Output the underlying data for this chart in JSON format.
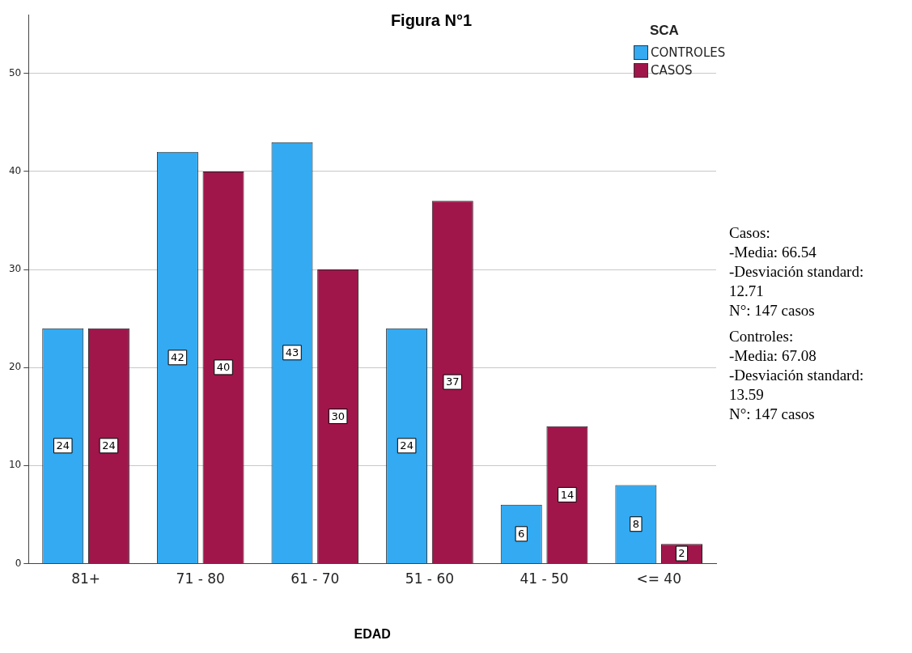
{
  "chart_data": {
    "type": "bar",
    "title": "Figura N°1",
    "xlabel": "EDAD",
    "legend_title": "SCA",
    "categories": [
      "81+",
      "71 - 80",
      "61 - 70",
      "51 - 60",
      "41 - 50",
      "<= 40"
    ],
    "series": [
      {
        "name": "CONTROLES",
        "color": "#33aaf2",
        "values": [
          24,
          42,
          43,
          24,
          6,
          8
        ]
      },
      {
        "name": "CASOS",
        "color": "#a0164b",
        "values": [
          24,
          40,
          30,
          37,
          14,
          2
        ]
      }
    ],
    "ylim": [
      0,
      56
    ],
    "yticks": [
      0,
      10,
      20,
      30,
      40,
      50
    ],
    "grid": "y",
    "legend": "top right",
    "data_labels": true,
    "annotations": [
      "Casos:\n-Media: 66.54\n-Desviación standard: 12.71\nN°: 147 casos",
      "Controles:\n-Media: 67.08\n-Desviación standard: 13.59\nN°: 147 casos"
    ]
  }
}
